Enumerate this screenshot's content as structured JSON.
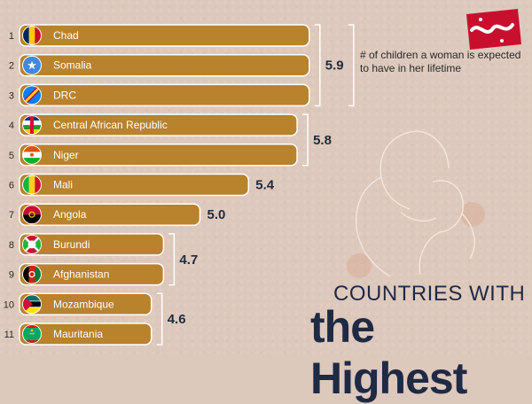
{
  "note": "# of children a woman is expected to have in her lifetime",
  "title_line1": "COUNTRIES WITH",
  "title_line2": "the Highest",
  "colors": {
    "bar": "#b9822d",
    "bar_border": "#ffffff",
    "text_dark": "#1f2a44"
  },
  "chart_data": {
    "type": "bar",
    "orientation": "horizontal",
    "categories": [
      "Chad",
      "Somalia",
      "DRC",
      "Central African Republic",
      "Niger",
      "Mali",
      "Angola",
      "Burundi",
      "Afghanistan",
      "Mozambique",
      "Mauritania"
    ],
    "ranks": [
      "1",
      "2",
      "3",
      "4",
      "5",
      "6",
      "7",
      "8",
      "9",
      "10",
      "11"
    ],
    "values": [
      5.9,
      5.9,
      5.9,
      5.8,
      5.8,
      5.4,
      5.0,
      4.7,
      4.7,
      4.6,
      4.6
    ],
    "value_groups": [
      {
        "label": "5.9",
        "from": 0,
        "to": 2
      },
      {
        "label": "5.8",
        "from": 3,
        "to": 4
      },
      {
        "label": "5.4",
        "from": 5,
        "to": 5
      },
      {
        "label": "5.0",
        "from": 6,
        "to": 6
      },
      {
        "label": "4.7",
        "from": 7,
        "to": 8
      },
      {
        "label": "4.6",
        "from": 9,
        "to": 10
      }
    ],
    "flags": [
      "chad-flag-icon",
      "somalia-flag-icon",
      "drc-flag-icon",
      "car-flag-icon",
      "niger-flag-icon",
      "mali-flag-icon",
      "angola-flag-icon",
      "burundi-flag-icon",
      "afghanistan-flag-icon",
      "mozambique-flag-icon",
      "mauritania-flag-icon"
    ]
  }
}
